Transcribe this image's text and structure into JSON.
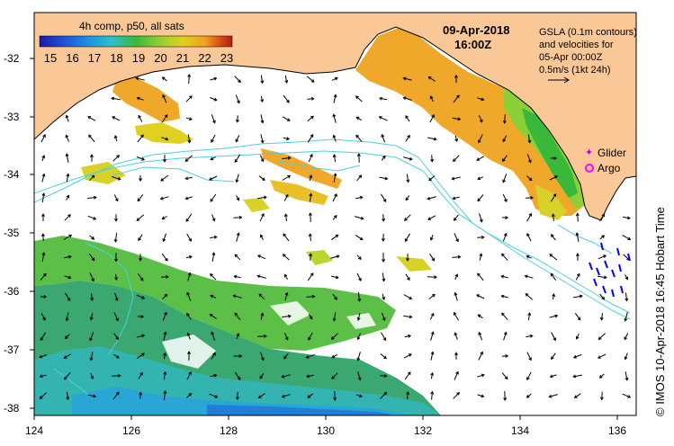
{
  "colorbar": {
    "title": "4h comp, p50, all sats",
    "ticks": [
      "15",
      "16",
      "17",
      "18",
      "19",
      "20",
      "21",
      "22",
      "23"
    ],
    "colors": [
      "#1a1aa6",
      "#1f4fd6",
      "#1f8fe0",
      "#2cc0cc",
      "#3ab83a",
      "#8fcf30",
      "#e0d020",
      "#f0a020",
      "#d84818",
      "#b02010"
    ]
  },
  "header": {
    "date": "09-Apr-2018",
    "time": "16:00Z"
  },
  "info": {
    "lines": [
      "GSLA (0.1m contours)",
      "and velocities for",
      "05-Apr 00:00Z",
      "0.5m/s (1kt 24h)"
    ]
  },
  "legend": {
    "glider": "Glider",
    "argo": "Argo",
    "glider_color": "#cc00cc",
    "argo_color": "#ff00ff"
  },
  "axes": {
    "x_ticks": [
      "124",
      "126",
      "128",
      "130",
      "132",
      "134",
      "136"
    ],
    "y_ticks": [
      "-32",
      "-33",
      "-34",
      "-35",
      "-36",
      "-37",
      "-38"
    ]
  },
  "credit": "© IMOS 10-Apr-2018 16:45 Hobart Time",
  "colors": {
    "land": "#fac896",
    "contour": "#4dd0e0",
    "arrow": "#000000",
    "glider": "#0000ff"
  }
}
